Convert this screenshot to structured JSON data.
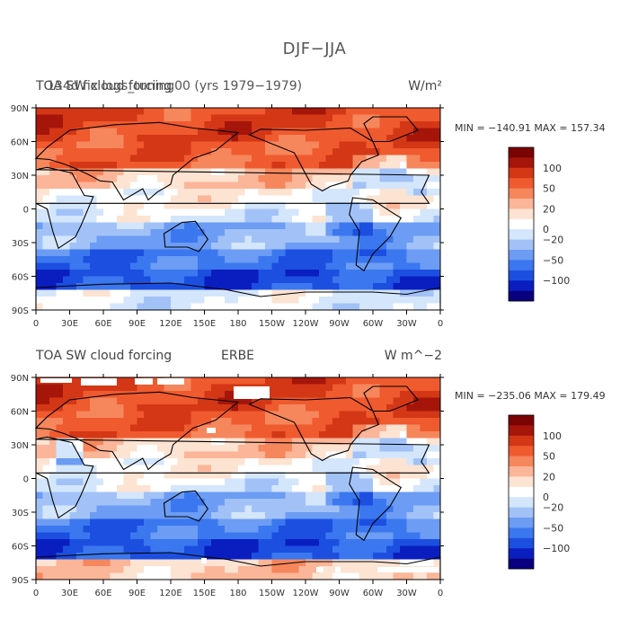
{
  "title": "DJF−JJA",
  "colorbar_colors": [
    "#08007e",
    "#0a1ec0",
    "#1c4fe0",
    "#3b78ef",
    "#6c9cf3",
    "#a2c2f7",
    "#d4e6fb",
    "#ffffff",
    "#fde3d2",
    "#fbb598",
    "#f6865c",
    "#ef5a2e",
    "#d33716",
    "#a5150a",
    "#7a0403"
  ],
  "colorbar_labels": [
    "100",
    "50",
    "20",
    "0",
    "−20",
    "−50",
    "−100"
  ],
  "x_ticks": [
    "0",
    "30E",
    "60E",
    "90E",
    "120E",
    "150E",
    "180",
    "150W",
    "120W",
    "90W",
    "60W",
    "30W",
    "0"
  ],
  "y_ticks": [
    "90N",
    "60N",
    "30N",
    "0",
    "30S",
    "60S",
    "90S"
  ],
  "panels": [
    {
      "title_left": "TOA SW cloud forcing",
      "title_overlap": "134d fix logs_tuning00 (yrs 1979−1979)",
      "units": "W/m²",
      "stats": "MIN = −140.91 MAX = 157.34"
    },
    {
      "title_left": "TOA SW cloud forcing",
      "title_mid": "ERBE",
      "units": "W m^−2",
      "stats": "MIN = −235.06 MAX = 179.49"
    }
  ]
}
